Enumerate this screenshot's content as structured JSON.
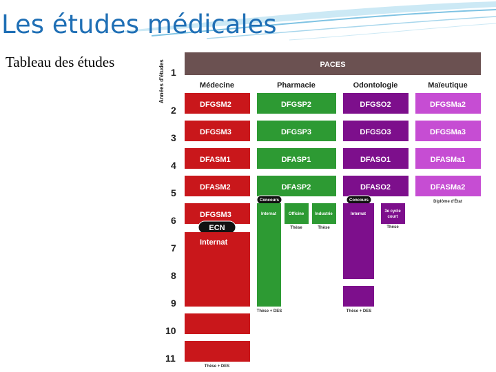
{
  "slide": {
    "title": "Les études médicales",
    "subtitle": "Tableau des études"
  },
  "colors": {
    "title": "#1f6fb5",
    "paces": "#6b5151",
    "medecine": "#c9171b",
    "pharmacie": "#2d9a33",
    "odontologie": "#7d0f8c",
    "maieutique": "#c64dd3"
  },
  "diagram": {
    "axis_title": "Années d'études",
    "years": [
      "1",
      "2",
      "3",
      "4",
      "5",
      "6",
      "7",
      "8",
      "9",
      "10",
      "11"
    ],
    "paces": "PACES",
    "columns": {
      "medecine": "Médecine",
      "pharmacie": "Pharmacie",
      "odontologie": "Odontologie",
      "maieutique": "Maïeutique"
    },
    "medecine": {
      "y2": "DFGSM2",
      "y3": "DFGSM3",
      "y4": "DFASM1",
      "y5": "DFASM2",
      "y6": "DFGSM3",
      "ecn": "ECN",
      "internat": "Internat",
      "end": "Thèse + DES"
    },
    "pharmacie": {
      "y2": "DFGSP2",
      "y3": "DFGSP3",
      "y4": "DFASP1",
      "y5": "DFASP2",
      "concours": "Concours",
      "internat": "Internat",
      "officine": "Officine",
      "industrie": "Industrie",
      "these1": "Thèse",
      "these2": "Thèse",
      "end": "Thèse + DES"
    },
    "odontologie": {
      "y2": "DFGSO2",
      "y3": "DFGSO3",
      "y4": "DFASO1",
      "y5": "DFASO2",
      "concours": "Concours",
      "internat": "Internat",
      "cycle_line1": "3e cycle",
      "cycle_line2": "court",
      "these": "Thèse",
      "end": "Thèse + DES"
    },
    "maieutique": {
      "y2": "DFGSMa2",
      "y3": "DFGSMa3",
      "y4": "DFASMa1",
      "y5": "DFASMa2",
      "end": "Diplôme d'État"
    }
  }
}
